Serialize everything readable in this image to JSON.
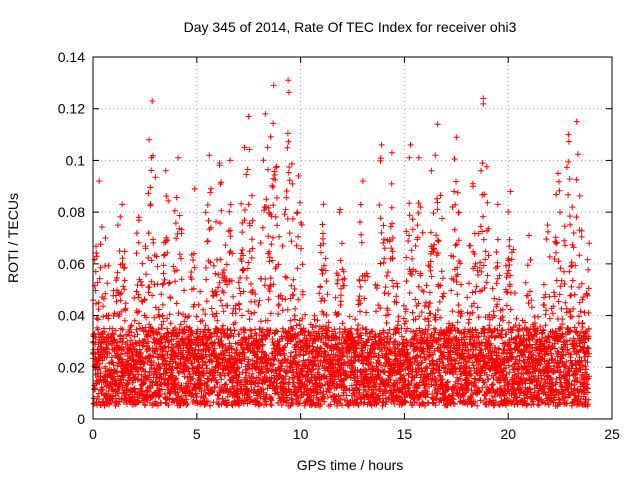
{
  "chart_data": {
    "type": "scatter",
    "title": "Day 345 of 2014, Rate Of TEC Index for receiver ohi3",
    "xlabel": "GPS time / hours",
    "ylabel": "ROTI / TECUs",
    "xlim": [
      0,
      25
    ],
    "ylim": [
      0,
      0.14
    ],
    "xticks": [
      "0",
      "5",
      "10",
      "15",
      "20",
      "25"
    ],
    "yticks": [
      "0",
      "0.02",
      "0.04",
      "0.06",
      "0.08",
      "0.1",
      "0.12",
      "0.14"
    ],
    "grid": true,
    "marker": "+",
    "color": "#ff0000",
    "series": [
      {
        "name": "ROTI",
        "x_range": [
          0,
          23.9
        ],
        "sampling_interval_hours": 0.0083,
        "baseline_range": [
          0.005,
          0.035
        ],
        "envelope_peaks": [
          {
            "x": 0.0,
            "y": 0.046
          },
          {
            "x": 0.3,
            "y": 0.092
          },
          {
            "x": 0.6,
            "y": 0.07
          },
          {
            "x": 1.2,
            "y": 0.075
          },
          {
            "x": 1.4,
            "y": 0.083
          },
          {
            "x": 2.2,
            "y": 0.078
          },
          {
            "x": 2.7,
            "y": 0.108
          },
          {
            "x": 2.85,
            "y": 0.123
          },
          {
            "x": 3.5,
            "y": 0.096
          },
          {
            "x": 4.1,
            "y": 0.101
          },
          {
            "x": 4.9,
            "y": 0.089
          },
          {
            "x": 5.6,
            "y": 0.102
          },
          {
            "x": 6.1,
            "y": 0.099
          },
          {
            "x": 6.6,
            "y": 0.1
          },
          {
            "x": 7.3,
            "y": 0.105
          },
          {
            "x": 7.5,
            "y": 0.117
          },
          {
            "x": 8.3,
            "y": 0.118
          },
          {
            "x": 8.7,
            "y": 0.129
          },
          {
            "x": 9.4,
            "y": 0.131
          },
          {
            "x": 9.9,
            "y": 0.094
          },
          {
            "x": 11.1,
            "y": 0.083
          },
          {
            "x": 11.9,
            "y": 0.081
          },
          {
            "x": 13.0,
            "y": 0.092
          },
          {
            "x": 13.9,
            "y": 0.106
          },
          {
            "x": 14.4,
            "y": 0.103
          },
          {
            "x": 15.3,
            "y": 0.106
          },
          {
            "x": 15.7,
            "y": 0.101
          },
          {
            "x": 16.3,
            "y": 0.096
          },
          {
            "x": 16.6,
            "y": 0.114
          },
          {
            "x": 17.5,
            "y": 0.109
          },
          {
            "x": 18.3,
            "y": 0.091
          },
          {
            "x": 18.8,
            "y": 0.124
          },
          {
            "x": 19.5,
            "y": 0.083
          },
          {
            "x": 20.1,
            "y": 0.088
          },
          {
            "x": 21.0,
            "y": 0.071
          },
          {
            "x": 21.9,
            "y": 0.075
          },
          {
            "x": 22.4,
            "y": 0.095
          },
          {
            "x": 22.9,
            "y": 0.11
          },
          {
            "x": 23.3,
            "y": 0.115
          },
          {
            "x": 23.9,
            "y": 0.068
          }
        ]
      }
    ]
  }
}
